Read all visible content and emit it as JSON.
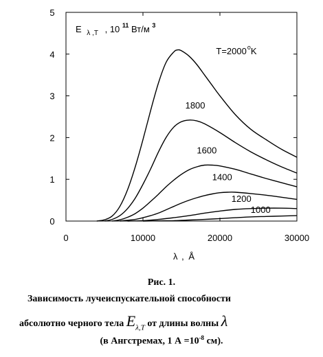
{
  "chart_data": {
    "type": "line",
    "xlabel_symbol": "λ",
    "xlabel_unit": "Å",
    "ylabel": {
      "symbol": "E",
      "subscript": "λ ,T",
      "scale_base": ", 10",
      "scale_exp": "11",
      "unit": "Вт/м",
      "unit_exp": "3"
    },
    "xlim": [
      0,
      30000
    ],
    "ylim": [
      0,
      5
    ],
    "x_ticks": [
      0,
      10000,
      20000,
      30000
    ],
    "y_ticks": [
      0,
      1,
      2,
      3,
      4,
      5
    ],
    "x_tick_labels": [
      "0",
      "10000",
      "20000",
      "30000"
    ],
    "y_tick_labels": [
      "0",
      "1",
      "2",
      "3",
      "4",
      "5"
    ],
    "grid": false,
    "series": [
      {
        "name": "T=2000",
        "label": "T=2000",
        "label_sup": "o",
        "label_unit": "K",
        "points": [
          [
            4000,
            0.0
          ],
          [
            5000,
            0.03
          ],
          [
            6000,
            0.12
          ],
          [
            7000,
            0.35
          ],
          [
            8000,
            0.75
          ],
          [
            9000,
            1.3
          ],
          [
            10000,
            1.95
          ],
          [
            11000,
            2.65
          ],
          [
            12000,
            3.3
          ],
          [
            13000,
            3.8
          ],
          [
            14000,
            4.05
          ],
          [
            14500,
            4.1
          ],
          [
            15000,
            4.08
          ],
          [
            16000,
            3.95
          ],
          [
            17000,
            3.75
          ],
          [
            18000,
            3.5
          ],
          [
            19000,
            3.25
          ],
          [
            20000,
            3.0
          ],
          [
            22000,
            2.55
          ],
          [
            24000,
            2.2
          ],
          [
            26000,
            1.95
          ],
          [
            28000,
            1.72
          ],
          [
            30000,
            1.53
          ]
        ]
      },
      {
        "name": "1800",
        "label": "1800",
        "points": [
          [
            5000,
            0.0
          ],
          [
            6000,
            0.04
          ],
          [
            7000,
            0.13
          ],
          [
            8000,
            0.3
          ],
          [
            9000,
            0.55
          ],
          [
            10000,
            0.88
          ],
          [
            11000,
            1.25
          ],
          [
            12000,
            1.65
          ],
          [
            13000,
            2.0
          ],
          [
            14000,
            2.25
          ],
          [
            15000,
            2.38
          ],
          [
            16000,
            2.42
          ],
          [
            17000,
            2.4
          ],
          [
            18000,
            2.33
          ],
          [
            20000,
            2.12
          ],
          [
            22000,
            1.88
          ],
          [
            24000,
            1.66
          ],
          [
            26000,
            1.47
          ],
          [
            28000,
            1.3
          ],
          [
            30000,
            1.15
          ]
        ]
      },
      {
        "name": "1600",
        "label": "1600",
        "points": [
          [
            6000,
            0.0
          ],
          [
            7000,
            0.03
          ],
          [
            8000,
            0.09
          ],
          [
            9000,
            0.18
          ],
          [
            10000,
            0.31
          ],
          [
            11000,
            0.47
          ],
          [
            12000,
            0.64
          ],
          [
            13000,
            0.82
          ],
          [
            14000,
            0.98
          ],
          [
            15000,
            1.12
          ],
          [
            16000,
            1.23
          ],
          [
            17000,
            1.3
          ],
          [
            18000,
            1.34
          ],
          [
            19000,
            1.34
          ],
          [
            20000,
            1.32
          ],
          [
            22000,
            1.24
          ],
          [
            24000,
            1.13
          ],
          [
            26000,
            1.02
          ],
          [
            28000,
            0.92
          ],
          [
            30000,
            0.82
          ]
        ]
      },
      {
        "name": "1400",
        "label": "1400",
        "points": [
          [
            7000,
            0.0
          ],
          [
            8000,
            0.02
          ],
          [
            9000,
            0.04
          ],
          [
            10000,
            0.08
          ],
          [
            11000,
            0.13
          ],
          [
            12000,
            0.19
          ],
          [
            13000,
            0.27
          ],
          [
            14000,
            0.35
          ],
          [
            15000,
            0.43
          ],
          [
            16000,
            0.5
          ],
          [
            17000,
            0.56
          ],
          [
            18000,
            0.61
          ],
          [
            19000,
            0.65
          ],
          [
            20000,
            0.68
          ],
          [
            21000,
            0.69
          ],
          [
            22000,
            0.69
          ],
          [
            24000,
            0.66
          ],
          [
            26000,
            0.62
          ],
          [
            28000,
            0.57
          ],
          [
            30000,
            0.52
          ]
        ]
      },
      {
        "name": "1200",
        "label": "1200",
        "points": [
          [
            8000,
            0.0
          ],
          [
            10000,
            0.01
          ],
          [
            12000,
            0.04
          ],
          [
            14000,
            0.08
          ],
          [
            16000,
            0.13
          ],
          [
            18000,
            0.19
          ],
          [
            20000,
            0.24
          ],
          [
            22000,
            0.28
          ],
          [
            24000,
            0.3
          ],
          [
            26000,
            0.31
          ],
          [
            28000,
            0.31
          ],
          [
            30000,
            0.3
          ]
        ]
      },
      {
        "name": "1000",
        "label": "1000",
        "points": [
          [
            10000,
            0.0
          ],
          [
            12000,
            0.005
          ],
          [
            14000,
            0.01
          ],
          [
            16000,
            0.025
          ],
          [
            18000,
            0.04
          ],
          [
            20000,
            0.06
          ],
          [
            22000,
            0.08
          ],
          [
            24000,
            0.1
          ],
          [
            26000,
            0.11
          ],
          [
            28000,
            0.12
          ],
          [
            30000,
            0.13
          ]
        ]
      }
    ]
  },
  "caption": {
    "title": "Рис. 1.",
    "line2": "Зависимость лучеиспускательной способности",
    "line3_before": "абсолютно черного тела",
    "line3_symbol": "E",
    "line3_sub": "λ,T",
    "line3_mid": "от длины волны",
    "line3_lambda": "λ",
    "line4_before": "(в Ангстремах, 1 А =10",
    "line4_exp": "-8",
    "line4_after": " см)."
  }
}
